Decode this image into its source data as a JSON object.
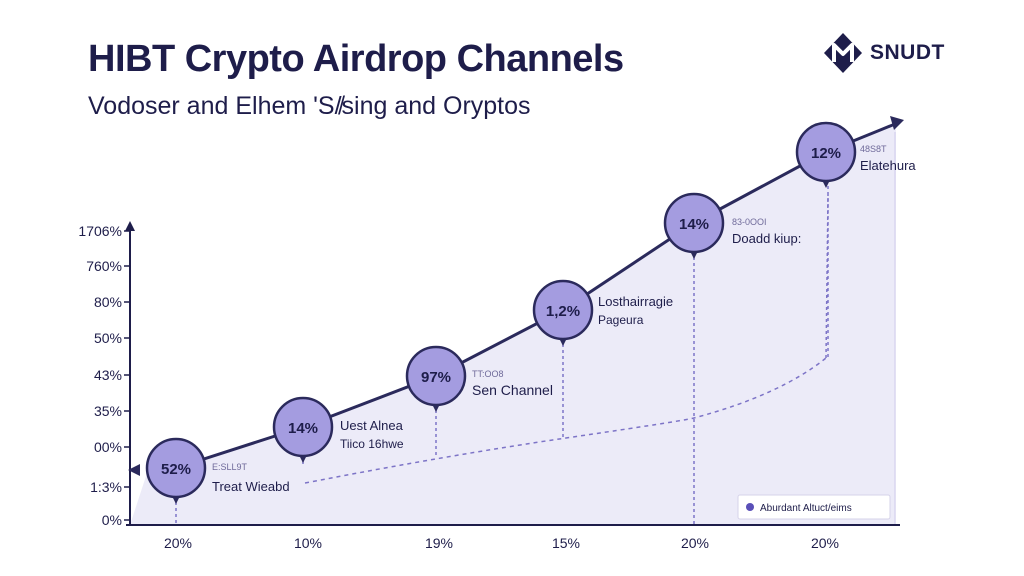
{
  "header": {
    "title": "HIBT Crypto Airdrop Channels",
    "subtitle": "Vodoser and Elhem 'S/̸sing and Oryptos"
  },
  "logo": {
    "text": "SNUDT",
    "icon": "hexagon-logo-icon"
  },
  "colors": {
    "navy": "#1e1d4a",
    "line": "#2b2a5c",
    "accent": "#7d74c7",
    "bubble": "#a49ce0",
    "area": "#ecebf8"
  },
  "chart_data": {
    "type": "line",
    "title": "HIBT Crypto Airdrop Channels",
    "xlabel": "",
    "ylabel": "",
    "y_tick_labels": [
      "1706%",
      "760%",
      "80%",
      "50%",
      "43%",
      "35%",
      "00%",
      "1:3%",
      "0%"
    ],
    "x_tick_labels": [
      "20%",
      "10%",
      "19%",
      "15%",
      "20%",
      "20%"
    ],
    "grid": false,
    "legend": {
      "placement": "bottom-right",
      "entries": [
        "Aburdant Altuct/eims"
      ]
    },
    "series": [
      {
        "points": [
          {
            "label": "52%",
            "annotation_top": "E:SLL9T",
            "annotation": "Treat Wieabd"
          },
          {
            "label": "14%",
            "annotation_top": "",
            "annotation": "Uest Alnea\nTiico 16hwe"
          },
          {
            "label": "97%",
            "annotation_top": "TT:OO8",
            "annotation": "Sen Channel"
          },
          {
            "label": "1,2%",
            "annotation_top": "",
            "annotation": "Losthairragie\nPageura"
          },
          {
            "label": "14%",
            "annotation_top": "83-0OOI",
            "annotation": "Doadd kiup:"
          },
          {
            "label": "12%",
            "annotation_top": "48S8T",
            "annotation": "Elatehura"
          }
        ]
      }
    ]
  }
}
